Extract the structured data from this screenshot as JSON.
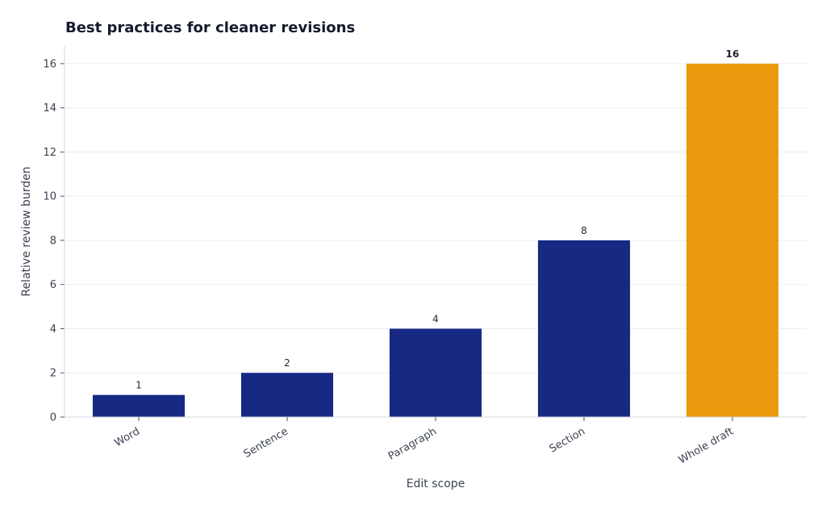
{
  "chart_data": {
    "type": "bar",
    "title": "Best practices for cleaner revisions",
    "xlabel": "Edit scope",
    "ylabel": "Relative review burden",
    "categories": [
      "Word",
      "Sentence",
      "Paragraph",
      "Section",
      "Whole draft"
    ],
    "values": [
      1,
      2,
      4,
      8,
      16
    ],
    "ylim": [
      0,
      16.8
    ],
    "yticks": [
      0,
      2,
      4,
      6,
      8,
      10,
      12,
      14,
      16
    ],
    "data_labels": [
      "1",
      "2",
      "4",
      "8",
      "16"
    ],
    "highlight_index": 4,
    "grid": true,
    "colors": {
      "bar": "#172983",
      "highlight": "#ea9a0c",
      "grid": "#ebedf0",
      "axis": "#d4d7dd"
    }
  }
}
